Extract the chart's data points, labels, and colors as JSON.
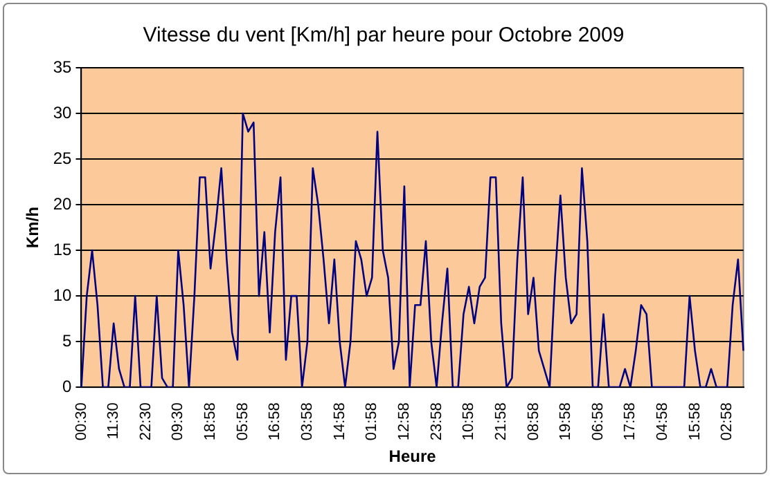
{
  "chart_data": {
    "type": "line",
    "title": "Vitesse du vent [Km/h] par heure pour Octobre 2009",
    "xlabel": "Heure",
    "ylabel": "Km/h",
    "categories": [
      "00:30",
      null,
      null,
      null,
      null,
      null,
      "11:30",
      null,
      null,
      null,
      null,
      null,
      "22:30",
      null,
      null,
      null,
      null,
      null,
      "09:30",
      null,
      null,
      null,
      null,
      null,
      "18:58",
      null,
      null,
      null,
      null,
      null,
      "05:58",
      null,
      null,
      null,
      null,
      null,
      "16:58",
      null,
      null,
      null,
      null,
      null,
      "03:58",
      null,
      null,
      null,
      null,
      null,
      "14:58",
      null,
      null,
      null,
      null,
      null,
      "01:58",
      null,
      null,
      null,
      null,
      null,
      "12:58",
      null,
      null,
      null,
      null,
      null,
      "23:58",
      null,
      null,
      null,
      null,
      null,
      "10:58",
      null,
      null,
      null,
      null,
      null,
      "21:58",
      null,
      null,
      null,
      null,
      null,
      "08:58",
      null,
      null,
      null,
      null,
      null,
      "19:58",
      null,
      null,
      null,
      null,
      null,
      "06:58",
      null,
      null,
      null,
      null,
      null,
      "17:58",
      null,
      null,
      null,
      null,
      null,
      "04:58",
      null,
      null,
      null,
      null,
      null,
      "15:58",
      null,
      null,
      null,
      null,
      null,
      "02:58",
      null,
      null,
      null
    ],
    "series": [
      {
        "color": "#000080",
        "values": [
          0,
          10,
          15,
          9,
          0,
          0,
          7,
          2,
          0,
          0,
          10,
          0,
          0,
          0,
          10,
          1,
          0,
          0,
          15,
          9,
          0,
          10,
          23,
          23,
          13,
          18,
          24,
          14,
          6,
          3,
          30,
          28,
          29,
          10,
          17,
          6,
          17,
          23,
          3,
          10,
          10,
          0,
          5,
          24,
          20,
          14,
          7,
          14,
          5,
          0,
          5,
          16,
          14,
          10,
          12,
          28,
          15,
          12,
          2,
          5,
          22,
          0,
          9,
          9,
          16,
          5,
          0,
          7,
          13,
          0,
          0,
          8,
          11,
          7,
          11,
          12,
          23,
          23,
          7,
          0,
          1,
          14,
          23,
          8,
          12,
          4,
          2,
          0,
          12,
          21,
          12,
          7,
          8,
          24,
          16,
          0,
          0,
          8,
          0,
          0,
          0,
          2,
          0,
          4,
          9,
          8,
          0,
          0,
          0,
          0,
          0,
          0,
          0,
          10,
          4,
          0,
          0,
          2,
          0,
          0,
          0,
          9,
          14,
          4
        ]
      }
    ],
    "ylim": [
      0,
      35
    ],
    "yticks": [
      0,
      5,
      10,
      15,
      20,
      25,
      30,
      35
    ],
    "grid": "y",
    "legend": false,
    "marker": "none",
    "line_style": "solid"
  }
}
